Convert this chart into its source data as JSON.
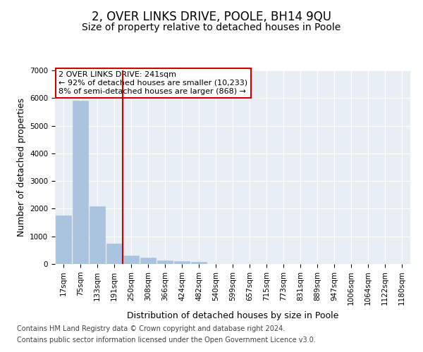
{
  "title": "2, OVER LINKS DRIVE, POOLE, BH14 9QU",
  "subtitle": "Size of property relative to detached houses in Poole",
  "xlabel": "Distribution of detached houses by size in Poole",
  "ylabel": "Number of detached properties",
  "categories": [
    "17sqm",
    "75sqm",
    "133sqm",
    "191sqm",
    "250sqm",
    "308sqm",
    "366sqm",
    "424sqm",
    "482sqm",
    "540sqm",
    "599sqm",
    "657sqm",
    "715sqm",
    "773sqm",
    "831sqm",
    "889sqm",
    "947sqm",
    "1006sqm",
    "1064sqm",
    "1122sqm",
    "1180sqm"
  ],
  "values": [
    1750,
    5900,
    2100,
    750,
    300,
    230,
    130,
    110,
    70,
    0,
    0,
    0,
    0,
    0,
    0,
    0,
    0,
    0,
    0,
    0,
    0
  ],
  "bar_color": "#aac4e0",
  "vline_x_index": 3.5,
  "vline_color": "#cc0000",
  "annotation_text": "2 OVER LINKS DRIVE: 241sqm\n← 92% of detached houses are smaller (10,233)\n8% of semi-detached houses are larger (868) →",
  "annotation_box_color": "#cc0000",
  "annotation_fill": "white",
  "ylim": [
    0,
    7000
  ],
  "yticks": [
    0,
    1000,
    2000,
    3000,
    4000,
    5000,
    6000,
    7000
  ],
  "background_color": "#e8eef5",
  "footer_line1": "Contains HM Land Registry data © Crown copyright and database right 2024.",
  "footer_line2": "Contains public sector information licensed under the Open Government Licence v3.0.",
  "title_fontsize": 12,
  "subtitle_fontsize": 10,
  "axis_label_fontsize": 9,
  "tick_fontsize": 7.5,
  "annotation_fontsize": 8,
  "footer_fontsize": 7
}
